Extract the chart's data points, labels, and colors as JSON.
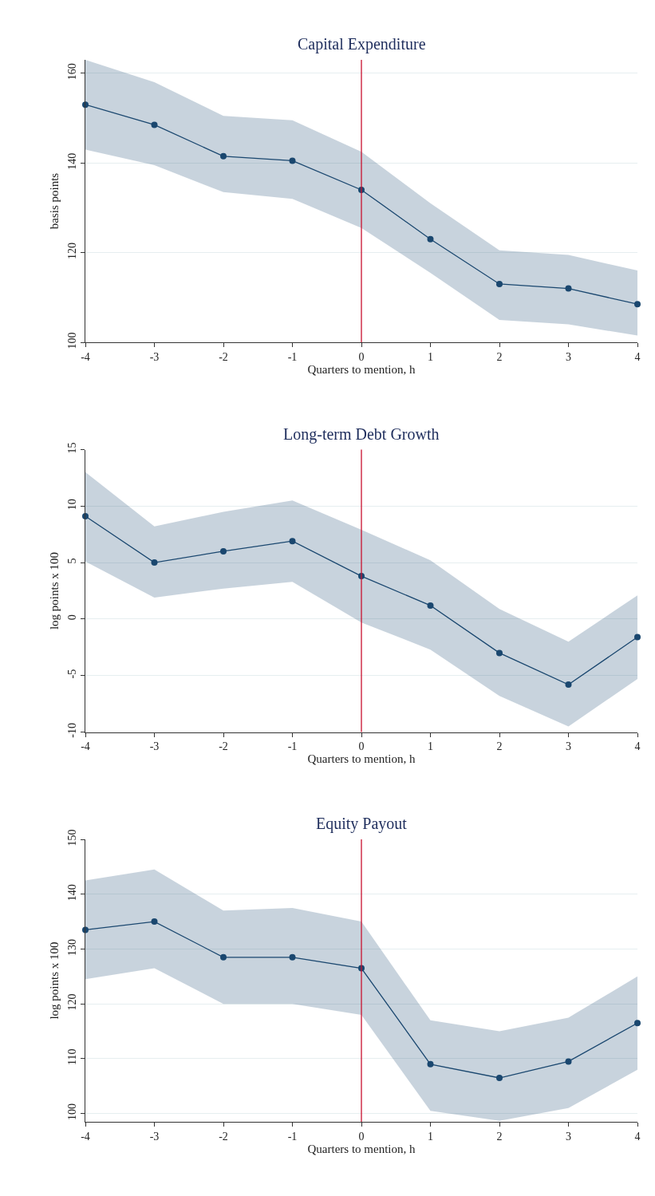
{
  "chart_data": [
    {
      "type": "line",
      "title": "Capital Expenditure",
      "xlabel": "Quarters to mention, h",
      "ylabel": "basis points",
      "x": [
        -4,
        -3,
        -2,
        -1,
        0,
        1,
        2,
        3,
        4
      ],
      "series": [
        {
          "color": "#1a476f",
          "values": [
            153,
            148.5,
            141.5,
            140.5,
            134,
            123,
            113,
            112,
            108.5
          ],
          "lower": [
            143,
            139.5,
            133.5,
            132,
            125.5,
            115.5,
            105,
            104,
            101.5
          ],
          "upper": [
            163,
            158,
            150.5,
            149.5,
            142.5,
            131,
            120.5,
            119.5,
            116
          ]
        }
      ],
      "xlim": [
        -4,
        4
      ],
      "xticks": [
        -4,
        -3,
        -2,
        -1,
        0,
        1,
        2,
        3,
        4
      ],
      "ylim": [
        100,
        163
      ],
      "yticks": [
        100,
        120,
        140,
        160
      ],
      "ref_lines": [
        {
          "axis": "x",
          "value": 0,
          "color": "#c8102e"
        }
      ],
      "grid": "y",
      "marker": "circle",
      "line_style": "solid"
    },
    {
      "type": "line",
      "title": "Long-term Debt Growth",
      "xlabel": "Quarters to mention, h",
      "ylabel": "log points x 100",
      "x": [
        -4,
        -3,
        -2,
        -1,
        0,
        1,
        2,
        3,
        4
      ],
      "series": [
        {
          "color": "#1a476f",
          "values": [
            9.1,
            5.0,
            6.0,
            6.9,
            3.8,
            1.2,
            -3.0,
            -5.8,
            -1.6
          ],
          "lower": [
            5.1,
            1.9,
            2.7,
            3.3,
            -0.3,
            -2.7,
            -6.8,
            -9.5,
            -5.3
          ],
          "upper": [
            13.0,
            8.2,
            9.5,
            10.5,
            7.9,
            5.2,
            0.9,
            -2.0,
            2.1
          ]
        }
      ],
      "xlim": [
        -4,
        4
      ],
      "xticks": [
        -4,
        -3,
        -2,
        -1,
        0,
        1,
        2,
        3,
        4
      ],
      "ylim": [
        -10,
        15
      ],
      "yticks": [
        -10,
        -5,
        0,
        5,
        10,
        15
      ],
      "ref_lines": [
        {
          "axis": "x",
          "value": 0,
          "color": "#c8102e"
        }
      ],
      "grid": "y",
      "marker": "circle",
      "line_style": "solid"
    },
    {
      "type": "line",
      "title": "Equity Payout",
      "xlabel": "Quarters to mention, h",
      "ylabel": "log points x 100",
      "x": [
        -4,
        -3,
        -2,
        -1,
        0,
        1,
        2,
        3,
        4
      ],
      "series": [
        {
          "color": "#1a476f",
          "values": [
            133.5,
            135,
            128.5,
            128.5,
            126.5,
            109,
            106.5,
            109.5,
            116.5
          ],
          "lower": [
            124.5,
            126.5,
            120,
            120,
            118,
            100.5,
            98.7,
            101,
            108
          ],
          "upper": [
            142.5,
            144.5,
            137,
            137.5,
            135,
            117,
            115,
            117.5,
            125
          ]
        }
      ],
      "xlim": [
        -4,
        4
      ],
      "xticks": [
        -4,
        -3,
        -2,
        -1,
        0,
        1,
        2,
        3,
        4
      ],
      "ylim": [
        98.5,
        150
      ],
      "yticks": [
        100,
        110,
        120,
        130,
        140,
        150
      ],
      "ref_lines": [
        {
          "axis": "x",
          "value": 0,
          "color": "#c8102e"
        }
      ],
      "grid": "y",
      "marker": "circle",
      "line_style": "solid"
    }
  ]
}
